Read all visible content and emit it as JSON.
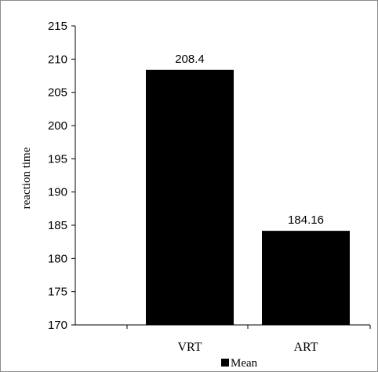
{
  "chart_data": {
    "type": "bar",
    "categories": [
      "VRT",
      "ART"
    ],
    "series": [
      {
        "name": "Mean",
        "values": [
          208.4,
          184.16
        ],
        "color": "#000000"
      }
    ],
    "data_labels": [
      "208.4",
      "184.16"
    ],
    "xlabel": "",
    "ylabel": "reaction time",
    "ylim": [
      170,
      215
    ],
    "yticks": [
      170,
      175,
      180,
      185,
      190,
      195,
      200,
      205,
      210,
      215
    ],
    "grid": false,
    "legend": {
      "position": "bottom",
      "entries": [
        "Mean"
      ]
    }
  }
}
